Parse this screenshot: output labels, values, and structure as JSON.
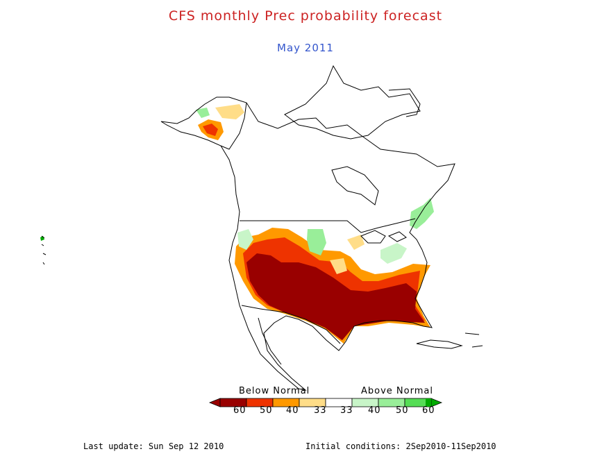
{
  "header": {
    "title": "CFS monthly Prec probability forecast",
    "subtitle": "May 2011"
  },
  "colors": {
    "title": "#cc2222",
    "subtitle": "#3355cc",
    "below": [
      "#990000",
      "#ee3300",
      "#ff9900",
      "#ffdd88"
    ],
    "neutral": "#ffffff",
    "above": [
      "#c8f5c8",
      "#99ee99",
      "#55dd55",
      "#00aa00"
    ]
  },
  "legend": {
    "below_label": "Below Normal",
    "above_label": "Above Normal",
    "ticks": [
      "60",
      "50",
      "40",
      "33",
      "33",
      "40",
      "50",
      "60"
    ]
  },
  "footer": {
    "last_update": "Last update: Sun Sep 12 2010",
    "initial_conditions": "Initial conditions: 2Sep2010-11Sep2010"
  }
}
